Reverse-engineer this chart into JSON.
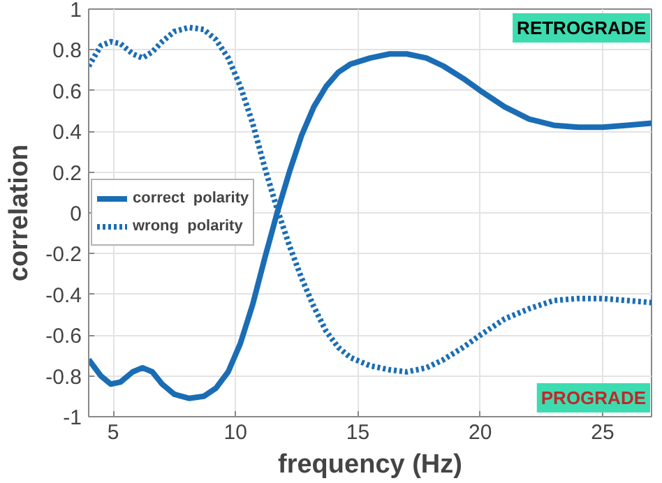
{
  "chart_data": {
    "type": "line",
    "xlabel": "frequency (Hz)",
    "ylabel": "correlation",
    "x": [
      4,
      4.5,
      4.9,
      5.3,
      5.8,
      6.2,
      6.6,
      7.0,
      7.5,
      8.1,
      8.7,
      9.2,
      9.7,
      10.2,
      10.7,
      11.2,
      11.7,
      12.2,
      12.7,
      13.2,
      13.7,
      14.2,
      14.7,
      15.5,
      16.3,
      17,
      17.8,
      18.5,
      19.3,
      20,
      21,
      22,
      23,
      24,
      25,
      26,
      27
    ],
    "series": [
      {
        "name": "correct  polarity",
        "color": "#1a6db5",
        "line_style": "solid",
        "values": [
          -0.72,
          -0.8,
          -0.84,
          -0.83,
          -0.78,
          -0.76,
          -0.78,
          -0.84,
          -0.89,
          -0.91,
          -0.9,
          -0.86,
          -0.78,
          -0.64,
          -0.45,
          -0.22,
          0.0,
          0.2,
          0.38,
          0.52,
          0.62,
          0.69,
          0.73,
          0.76,
          0.78,
          0.78,
          0.76,
          0.72,
          0.66,
          0.6,
          0.52,
          0.46,
          0.43,
          0.42,
          0.42,
          0.43,
          0.44
        ]
      },
      {
        "name": "wrong  polarity",
        "color": "#1a6db5",
        "line_style": "dotted",
        "values": [
          0.72,
          0.82,
          0.84,
          0.83,
          0.78,
          0.76,
          0.79,
          0.84,
          0.89,
          0.91,
          0.9,
          0.85,
          0.76,
          0.62,
          0.44,
          0.22,
          0.02,
          -0.16,
          -0.32,
          -0.46,
          -0.58,
          -0.66,
          -0.71,
          -0.75,
          -0.77,
          -0.78,
          -0.76,
          -0.72,
          -0.66,
          -0.6,
          -0.52,
          -0.47,
          -0.43,
          -0.42,
          -0.42,
          -0.43,
          -0.44
        ]
      }
    ],
    "xlim": [
      4,
      27
    ],
    "xticks": [
      5,
      10,
      15,
      20,
      25
    ],
    "ylim": [
      -1,
      1
    ],
    "yticks": [
      -1,
      -0.8,
      -0.6,
      -0.4,
      -0.2,
      0,
      0.2,
      0.4,
      0.6,
      0.8,
      1
    ],
    "grid": true,
    "legend": "left",
    "annotations": [
      "RETROGRADE",
      "PROGRADE"
    ]
  }
}
